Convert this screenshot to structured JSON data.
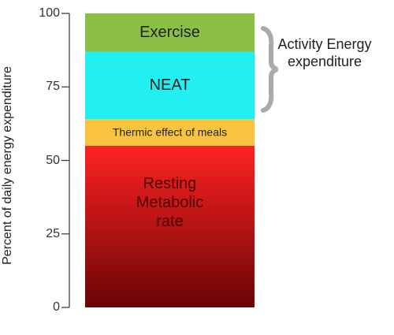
{
  "chart_data": {
    "type": "stacked_bar",
    "ylabel": "Percent of daily energy expenditure",
    "annotation": "Activity Energy expenditure",
    "categories": [
      null
    ],
    "series": [
      {
        "name": "Resting Metabolic rate",
        "color": "#ff2222",
        "values": [
          55
        ]
      },
      {
        "name": "Thermic effect of meals",
        "color": "#f9c440",
        "values": [
          9
        ]
      },
      {
        "name": "NEAT",
        "color": "#22f0f0",
        "values": [
          23
        ]
      },
      {
        "name": "Exercise",
        "color": "#8cbf45",
        "values": [
          13
        ]
      }
    ],
    "ylim": [
      0,
      100
    ],
    "yticks": [
      0,
      25,
      50,
      75,
      100
    ]
  }
}
